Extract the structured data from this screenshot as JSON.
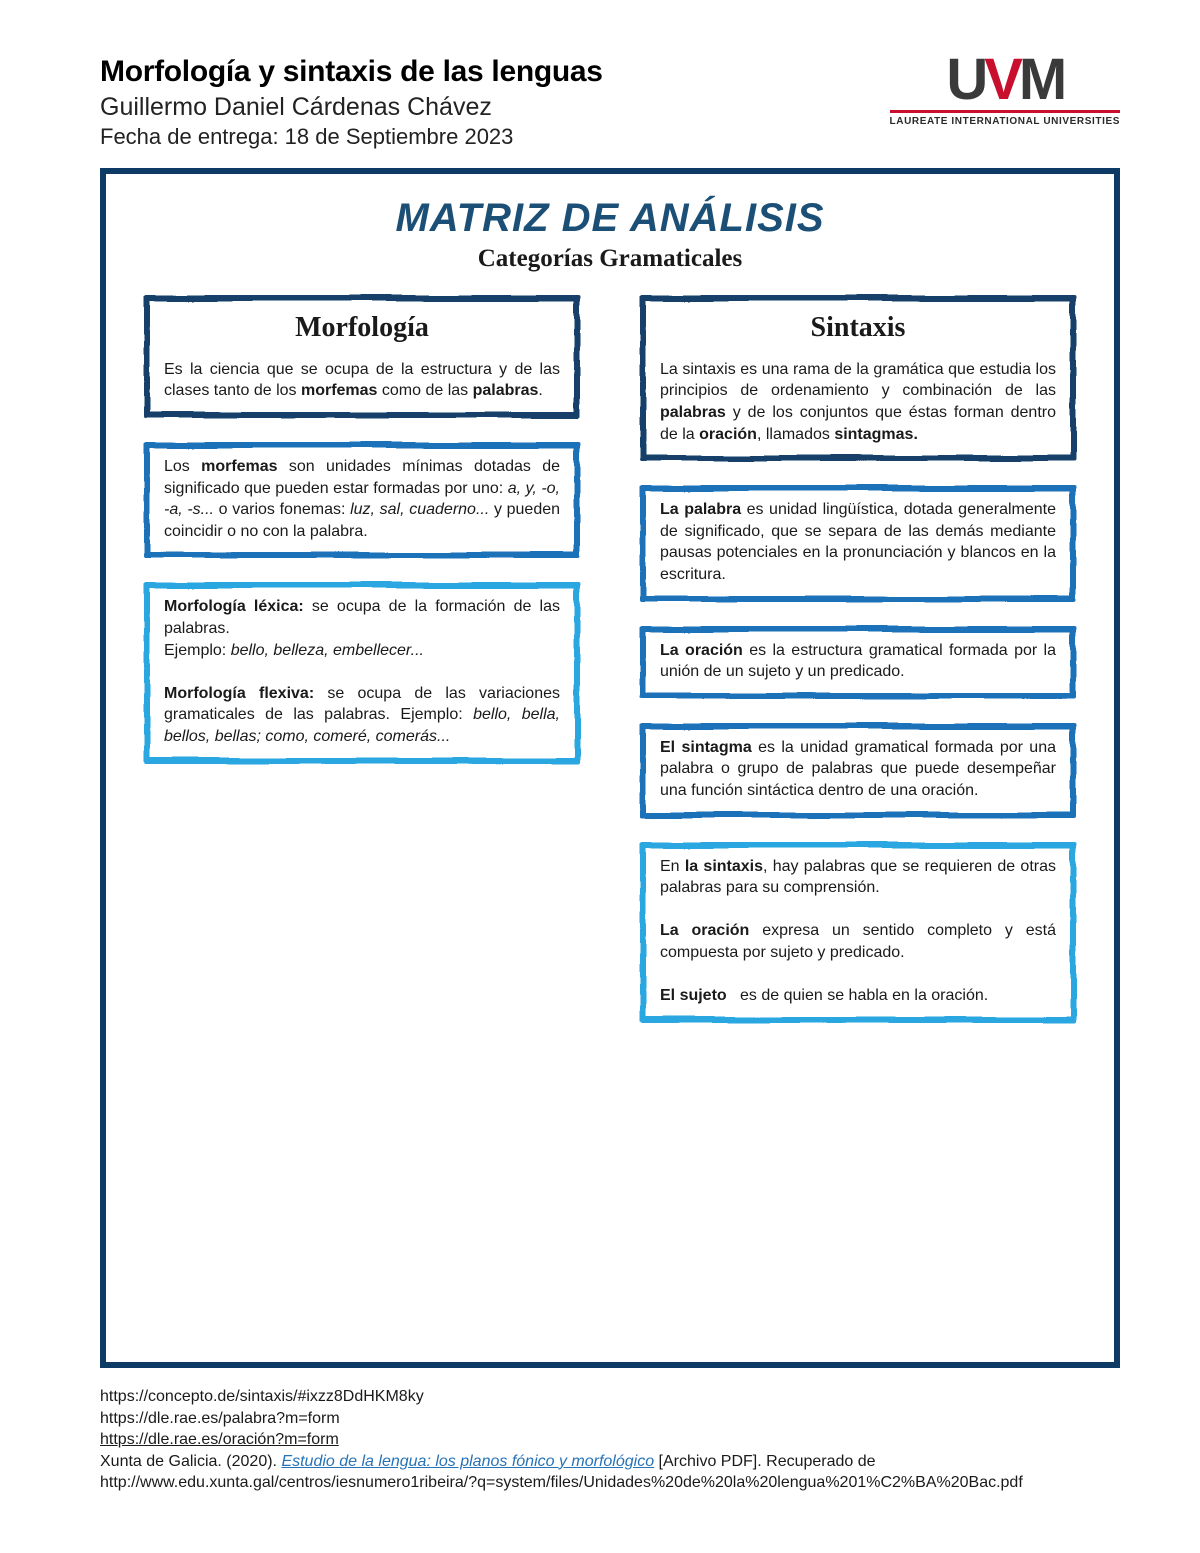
{
  "header": {
    "course": "Morfología y sintaxis de las lenguas",
    "author": "Guillermo Daniel Cárdenas Chávez",
    "date": "Fecha de entrega: 18 de Septiembre 2023"
  },
  "logo": {
    "letters": [
      "U",
      "V",
      "M"
    ],
    "accent_color": "#c8102e",
    "base_color": "#3a3a3a",
    "tagline": "LAUREATE INTERNATIONAL UNIVERSITIES"
  },
  "title": "MATRIZ DE ANÁLISIS",
  "subtitle": "Categorías Gramaticales",
  "colors": {
    "frame": "#0d3b66",
    "dark": "#143f6b",
    "mid": "#1d72b8",
    "light": "#2aa7e1",
    "title": "#1b4f76"
  },
  "left": {
    "heading": "Morfología",
    "cards": [
      {
        "border": "dark",
        "html": "Es la ciencia que se ocupa de la estructura y de las clases tanto de los <b>morfemas</b> como de las <b>palabras</b>."
      },
      {
        "border": "mid",
        "html": "Los <b>morfemas</b> son unidades mínimas dotadas de significado que pueden estar formadas por uno: <i>a, y, -o, -a, -s...</i> o varios fonemas: <i>luz, sal, cuaderno...</i> y pueden coincidir o no con la palabra."
      },
      {
        "border": "light",
        "html": "<b>Morfología léxica:</b> se ocupa de la formación de las palabras.<br>Ejemplo: <i>bello, belleza, embellecer...</i><br><br><b>Morfología flexiva:</b> se ocupa de las variaciones gramaticales de las palabras. Ejemplo: <i>bello, bella, bellos, bellas; como, comeré, comerás...</i>"
      }
    ]
  },
  "right": {
    "heading": "Sintaxis",
    "cards": [
      {
        "border": "dark",
        "html": "La sintaxis es una rama de la gramática que estudia los principios de ordenamiento y combinación de las <b>palabras</b> y de los conjuntos que éstas forman dentro de la <b>oración</b>, llamados <b>sintagmas.</b>"
      },
      {
        "border": "mid",
        "html": "<b>La palabra</b> es unidad lingüística, dotada generalmente de significado, que se separa de las demás mediante pausas potenciales en la pronunciación y blancos en la escritura."
      },
      {
        "border": "mid",
        "html": "<b>La oración</b> es la estructura gramatical formada por la unión de un sujeto y un predicado."
      },
      {
        "border": "mid",
        "html": "<b>El sintagma</b> es la unidad gramatical formada por una palabra o grupo de palabras que puede desempeñar una función sintáctica dentro de una oración."
      },
      {
        "border": "light",
        "html": "En <b>la sintaxis</b>, hay palabras que se requieren de otras palabras para su comprensión.<br><br><b>La oración</b> expresa un sentido completo y está compuesta por sujeto y predicado.<br><br><b>El sujeto</b>&nbsp;&nbsp; es de quien se habla en la oración."
      }
    ]
  },
  "refs": [
    {
      "type": "plain",
      "text": "https://concepto.de/sintaxis/#ixzz8DdHKM8ky"
    },
    {
      "type": "plain",
      "text": "https://dle.rae.es/palabra?m=form"
    },
    {
      "type": "underline",
      "text": "https://dle.rae.es/oración?m=form"
    },
    {
      "type": "cite",
      "pre": "Xunta de Galicia. (2020).  ",
      "title": "Estudio de la lengua: los planos fónico y morfológico",
      "post": " [Archivo PDF]. Recuperado de http://www.edu.xunta.gal/centros/iesnumero1ribeira/?q=system/files/Unidades%20de%20la%20lengua%201%C2%BA%20Bac.pdf"
    }
  ]
}
